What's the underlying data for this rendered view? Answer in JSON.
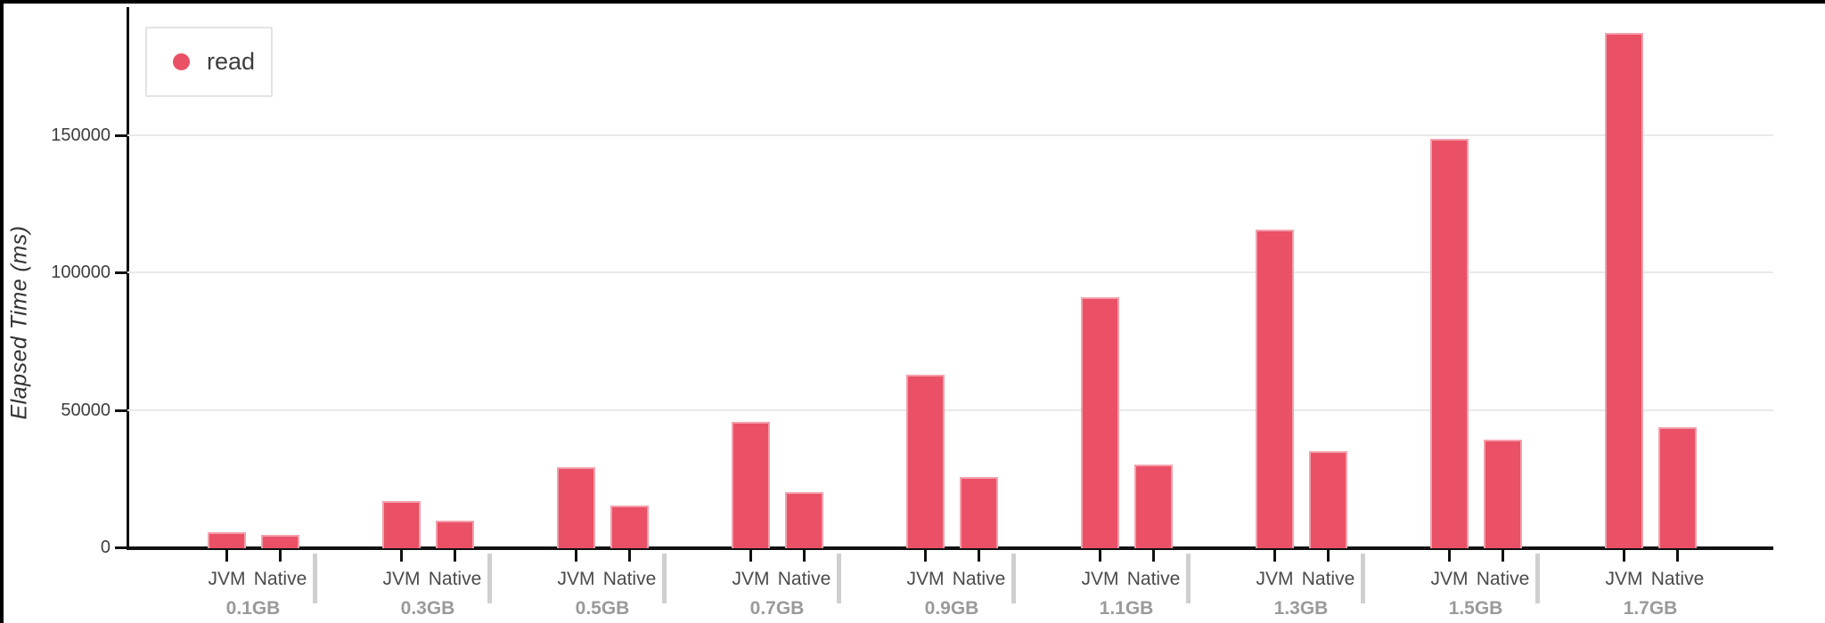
{
  "chart_data": {
    "type": "bar",
    "title": "",
    "ylabel": "Elapsed Time (ms)",
    "xlabel": "",
    "series_name": "read",
    "legend": {
      "label": "read",
      "position": "top-left"
    },
    "grid": true,
    "yticks": [
      0,
      50000,
      100000,
      150000
    ],
    "ylim": [
      0,
      196000
    ],
    "sub_categories": [
      "JVM",
      "Native"
    ],
    "groups": [
      {
        "label": "0.1GB",
        "values": {
          "JVM": 5800,
          "Native": 5000
        }
      },
      {
        "label": "0.3GB",
        "values": {
          "JVM": 17000,
          "Native": 9900
        }
      },
      {
        "label": "0.5GB",
        "values": {
          "JVM": 29500,
          "Native": 15500
        }
      },
      {
        "label": "0.7GB",
        "values": {
          "JVM": 46000,
          "Native": 20500
        }
      },
      {
        "label": "0.9GB",
        "values": {
          "JVM": 63000,
          "Native": 26000
        }
      },
      {
        "label": "1.1GB",
        "values": {
          "JVM": 91000,
          "Native": 30500
        }
      },
      {
        "label": "1.3GB",
        "values": {
          "JVM": 115500,
          "Native": 35300
        }
      },
      {
        "label": "1.5GB",
        "values": {
          "JVM": 148500,
          "Native": 39500
        }
      },
      {
        "label": "1.7GB",
        "values": {
          "JVM": 187000,
          "Native": 44000
        }
      }
    ],
    "colors": {
      "bar": "#ea5066",
      "axis": "#111111",
      "grid": "#e9e9e9",
      "separator": "#cfcfcf",
      "tick_label": "#3d3d3d",
      "sub_label": "#4a4a4a",
      "group_label": "#9a9a9a",
      "frame": "#000000"
    }
  }
}
